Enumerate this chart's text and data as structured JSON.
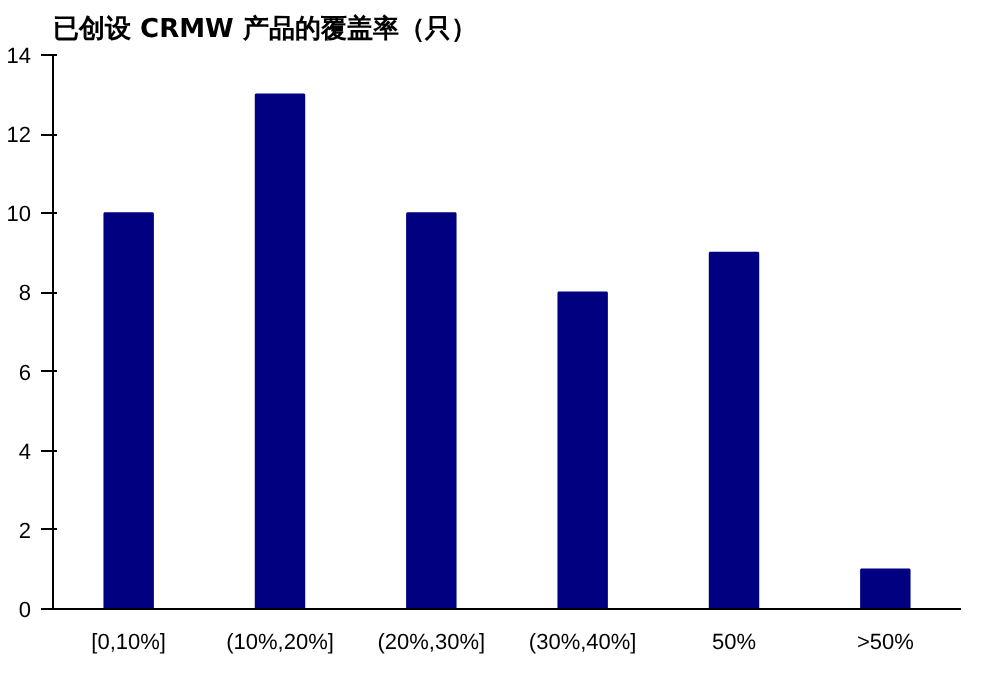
{
  "chart_data": {
    "type": "bar",
    "title": "已创设 CRMW 产品的覆盖率（只）",
    "categories": [
      "[0,10%]",
      "(10%,20%]",
      "(20%,30%]",
      "(30%,40%]",
      "50%",
      ">50%"
    ],
    "values": [
      10,
      13,
      10,
      8,
      9,
      1
    ],
    "color": "#000080",
    "ylim": [
      0,
      14
    ],
    "yticks": [
      0,
      2,
      4,
      6,
      8,
      10,
      12,
      14
    ],
    "grid": false
  }
}
